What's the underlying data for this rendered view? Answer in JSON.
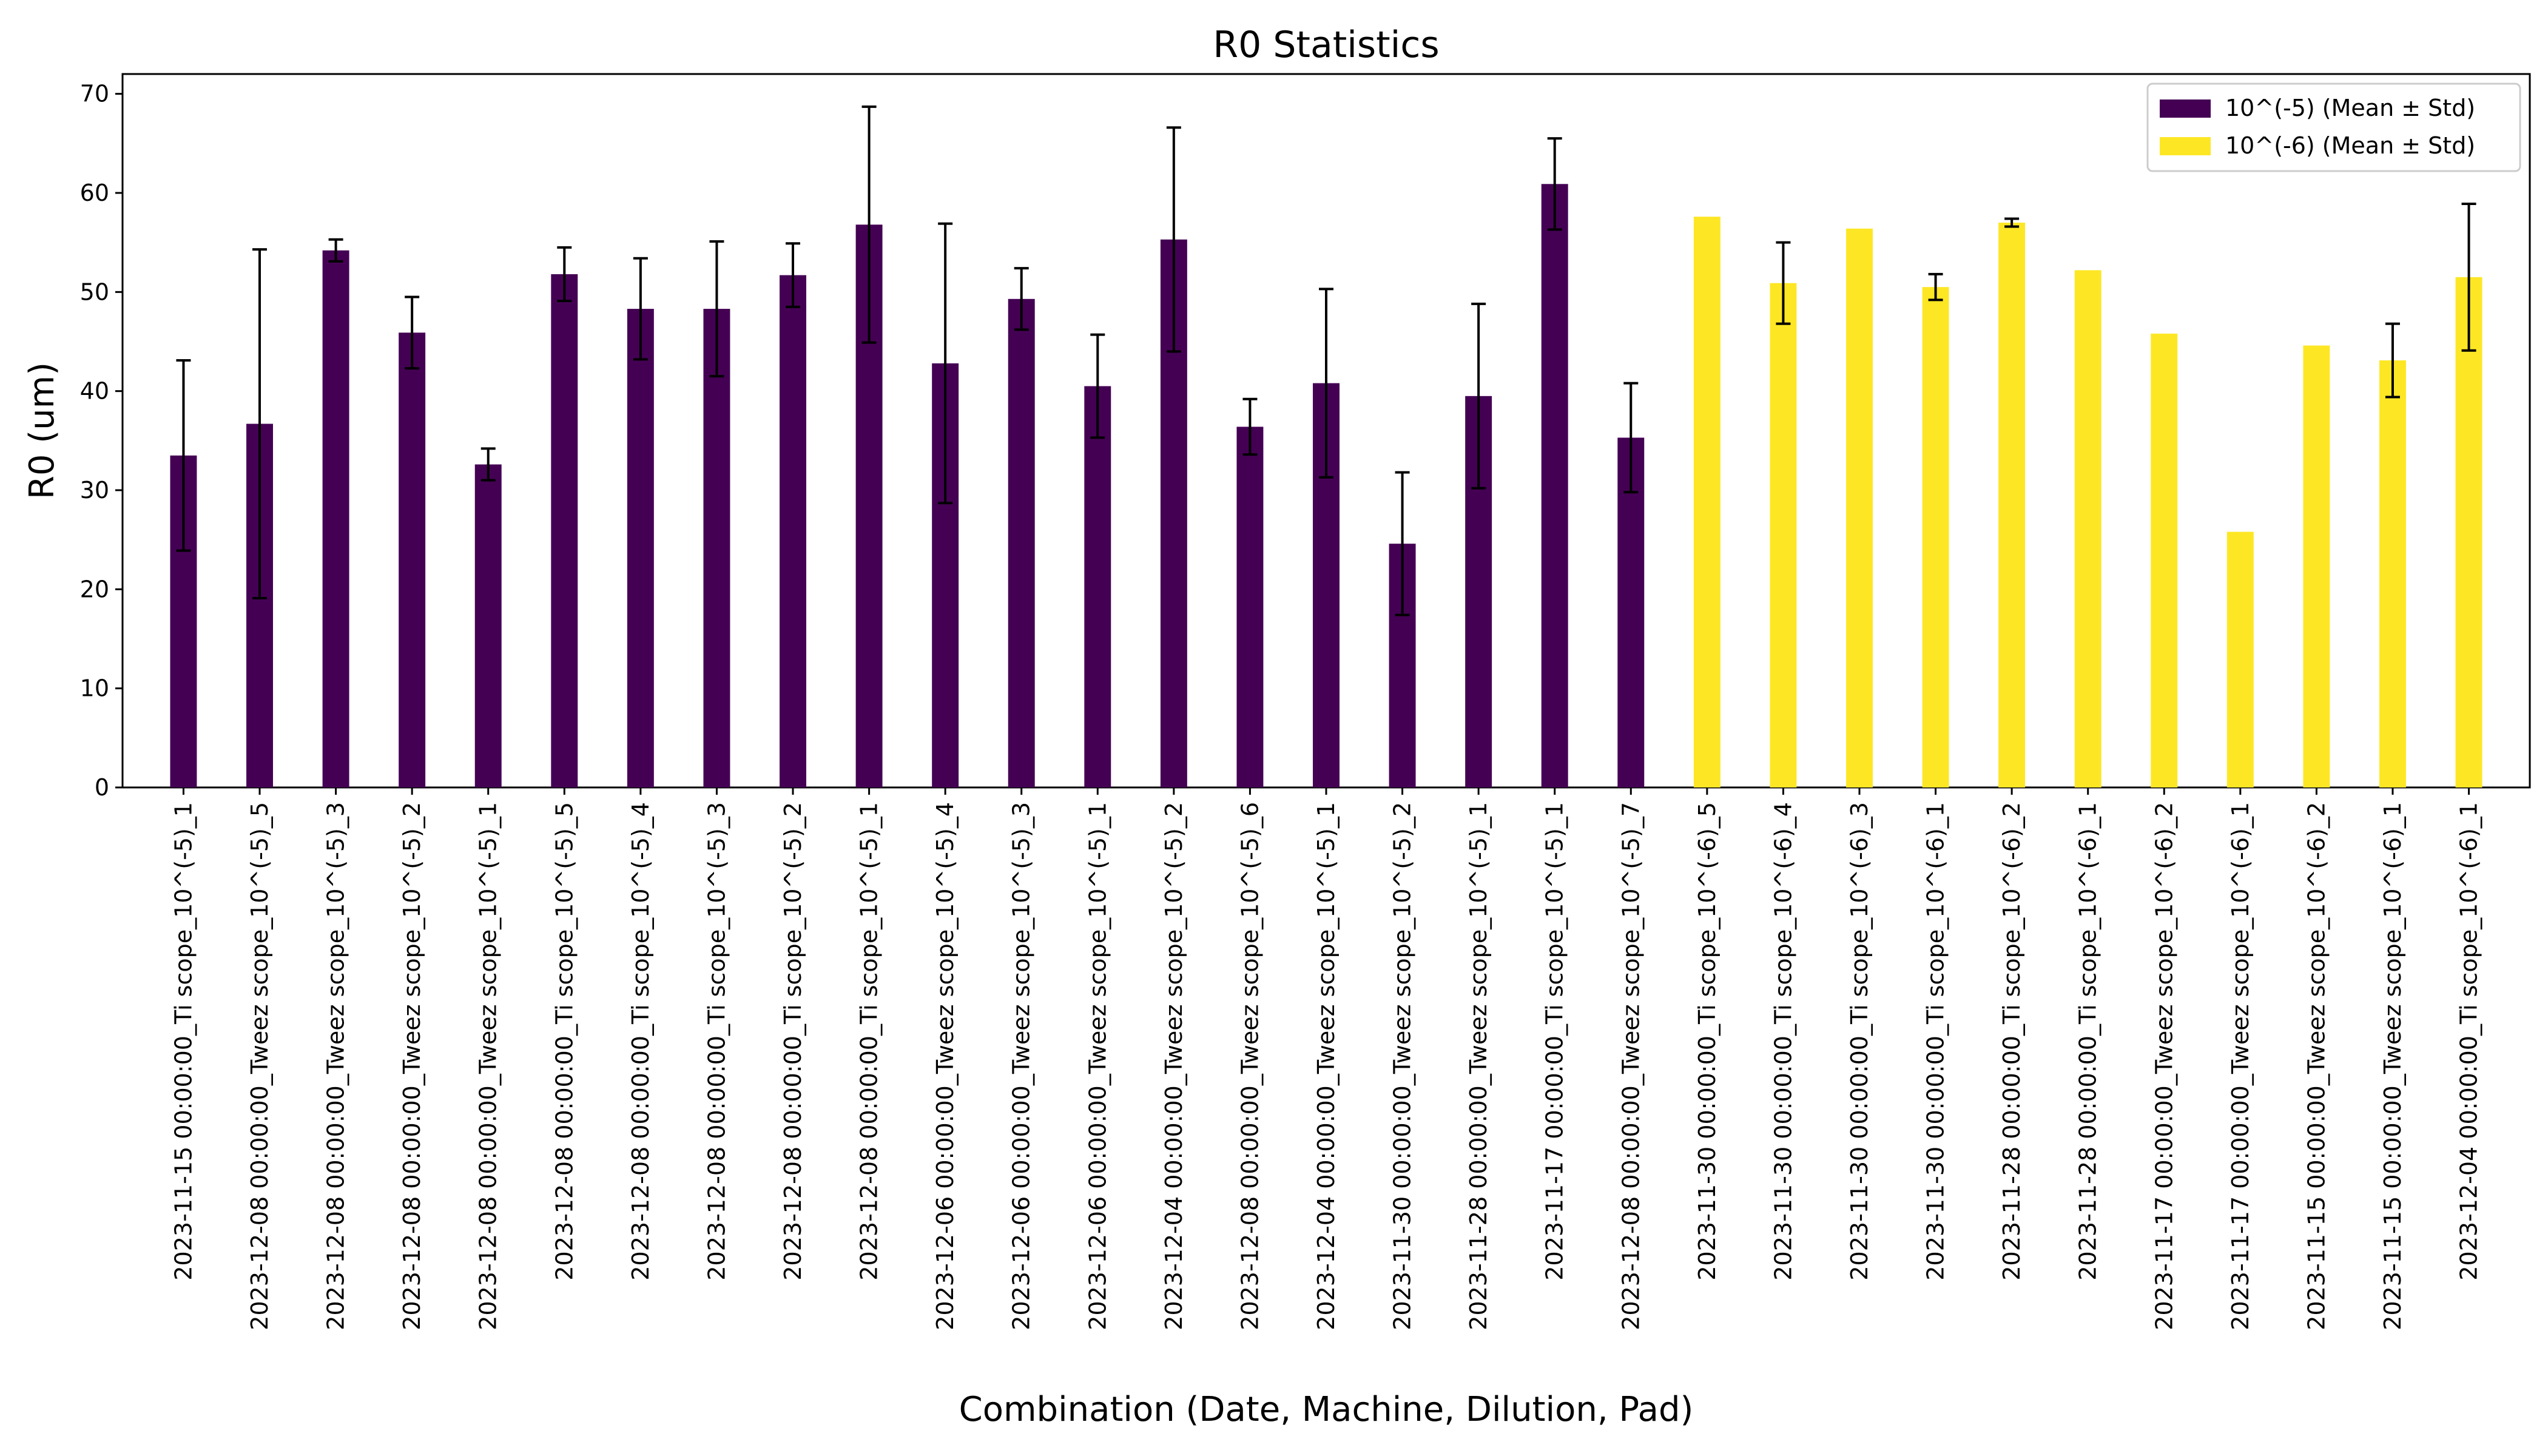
{
  "chart_data": {
    "type": "bar",
    "title": "R0 Statistics",
    "xlabel": "Combination (Date, Machine, Dilution, Pad)",
    "ylabel": "R0 (um)",
    "ylim": [
      0,
      72
    ],
    "yticks": [
      0,
      10,
      20,
      30,
      40,
      50,
      60,
      70
    ],
    "grid": false,
    "legend_position": "top-right",
    "categories": [
      "2023-11-15 00:00:00_Ti scope_10^(-5)_1",
      "2023-12-08 00:00:00_Tweez scope_10^(-5)_5",
      "2023-12-08 00:00:00_Tweez scope_10^(-5)_3",
      "2023-12-08 00:00:00_Tweez scope_10^(-5)_2",
      "2023-12-08 00:00:00_Tweez scope_10^(-5)_1",
      "2023-12-08 00:00:00_Ti scope_10^(-5)_5",
      "2023-12-08 00:00:00_Ti scope_10^(-5)_4",
      "2023-12-08 00:00:00_Ti scope_10^(-5)_3",
      "2023-12-08 00:00:00_Ti scope_10^(-5)_2",
      "2023-12-08 00:00:00_Ti scope_10^(-5)_1",
      "2023-12-06 00:00:00_Tweez scope_10^(-5)_4",
      "2023-12-06 00:00:00_Tweez scope_10^(-5)_3",
      "2023-12-06 00:00:00_Tweez scope_10^(-5)_1",
      "2023-12-04 00:00:00_Tweez scope_10^(-5)_2",
      "2023-12-08 00:00:00_Tweez scope_10^(-5)_6",
      "2023-12-04 00:00:00_Tweez scope_10^(-5)_1",
      "2023-11-30 00:00:00_Tweez scope_10^(-5)_2",
      "2023-11-28 00:00:00_Tweez scope_10^(-5)_1",
      "2023-11-17 00:00:00_Ti scope_10^(-5)_1",
      "2023-12-08 00:00:00_Tweez scope_10^(-5)_7",
      "2023-11-30 00:00:00_Ti scope_10^(-6)_5",
      "2023-11-30 00:00:00_Ti scope_10^(-6)_4",
      "2023-11-30 00:00:00_Ti scope_10^(-6)_3",
      "2023-11-30 00:00:00_Ti scope_10^(-6)_1",
      "2023-11-28 00:00:00_Ti scope_10^(-6)_2",
      "2023-11-28 00:00:00_Ti scope_10^(-6)_1",
      "2023-11-17 00:00:00_Tweez scope_10^(-6)_2",
      "2023-11-17 00:00:00_Tweez scope_10^(-6)_1",
      "2023-11-15 00:00:00_Tweez scope_10^(-6)_2",
      "2023-11-15 00:00:00_Tweez scope_10^(-6)_1",
      "2023-12-04 00:00:00_Ti scope_10^(-6)_1"
    ],
    "series": [
      {
        "name": "10^(-5) (Mean ± Std)",
        "color": "#440154",
        "values": [
          33.5,
          36.7,
          54.2,
          45.9,
          32.6,
          51.8,
          48.3,
          48.3,
          51.7,
          56.8,
          42.8,
          49.3,
          40.5,
          55.3,
          36.4,
          40.8,
          24.6,
          39.5,
          60.9,
          35.3,
          null,
          null,
          null,
          null,
          null,
          null,
          null,
          null,
          null,
          null,
          null
        ],
        "std": [
          9.6,
          17.6,
          1.1,
          3.6,
          1.6,
          2.7,
          5.1,
          6.8,
          3.2,
          11.9,
          14.1,
          3.1,
          5.2,
          11.3,
          2.8,
          9.5,
          7.2,
          9.3,
          4.6,
          5.5,
          null,
          null,
          null,
          null,
          null,
          null,
          null,
          null,
          null,
          null,
          null
        ]
      },
      {
        "name": "10^(-6) (Mean ± Std)",
        "color": "#fde725",
        "values": [
          null,
          null,
          null,
          null,
          null,
          null,
          null,
          null,
          null,
          null,
          null,
          null,
          null,
          null,
          null,
          null,
          null,
          null,
          null,
          null,
          57.6,
          50.9,
          56.4,
          50.5,
          57.0,
          52.2,
          45.8,
          25.8,
          44.6,
          43.1,
          51.5
        ],
        "std": [
          null,
          null,
          null,
          null,
          null,
          null,
          null,
          null,
          null,
          null,
          null,
          null,
          null,
          null,
          null,
          null,
          null,
          null,
          null,
          null,
          0,
          4.1,
          0,
          1.3,
          0.4,
          0,
          0,
          0,
          0,
          3.7,
          7.4
        ]
      }
    ]
  }
}
